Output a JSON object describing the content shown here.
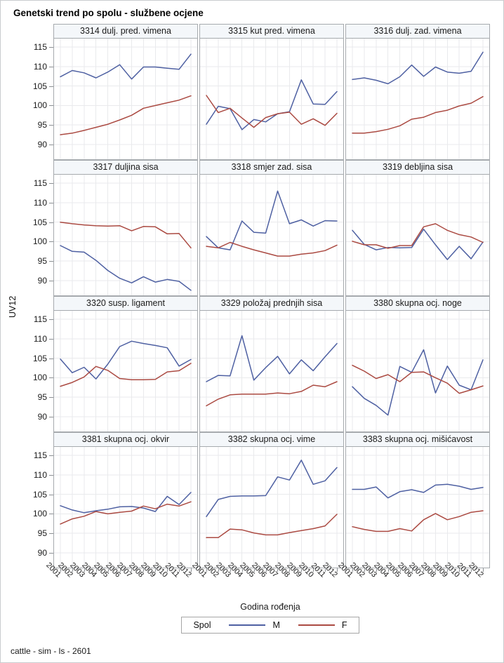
{
  "page": {
    "title": "Genetski trend po spolu - službene ocjene",
    "footer": "cattle - sim - ls - 2601"
  },
  "chart_data": {
    "type": "line",
    "layout": "4x3_trellis",
    "title": "Genetski trend po spolu - službene ocjene",
    "xlabel": "Godina rođenja",
    "ylabel": "UV12",
    "ylim": [
      86.2,
      117.2
    ],
    "yticks": [
      115,
      110,
      105,
      100,
      95,
      90
    ],
    "grid": true,
    "categories": [
      "2001",
      "2002",
      "2003",
      "2004",
      "2005",
      "2006",
      "2007",
      "2008",
      "2009",
      "2010",
      "2011",
      "2012"
    ],
    "legend": {
      "title": "Spol",
      "position": "bottom",
      "entries": [
        {
          "label": "M",
          "color": "#4e60a2"
        },
        {
          "label": "F",
          "color": "#ab4a42"
        }
      ]
    },
    "panels": [
      {
        "title": "3314 dulj. pred. vimena",
        "series": [
          {
            "name": "M",
            "values": [
              107.4,
              109.0,
              108.4,
              107.1,
              108.6,
              110.5,
              106.8,
              109.9,
              109.9,
              109.6,
              109.3,
              113.2
            ]
          },
          {
            "name": "F",
            "values": [
              92.5,
              92.9,
              93.6,
              94.4,
              95.2,
              96.3,
              97.5,
              99.3,
              100.0,
              100.7,
              101.4,
              102.5
            ]
          }
        ]
      },
      {
        "title": "3315 kut pred. vimena",
        "series": [
          {
            "name": "M",
            "values": [
              95.2,
              99.8,
              99.2,
              93.8,
              96.4,
              95.8,
              97.9,
              98.4,
              106.6,
              100.4,
              100.3,
              103.6
            ]
          },
          {
            "name": "F",
            "values": [
              102.6,
              98.2,
              99.3,
              96.8,
              94.4,
              96.9,
              97.9,
              98.3,
              95.2,
              96.6,
              94.9,
              98.0
            ]
          }
        ]
      },
      {
        "title": "3316 dulj. zad. vimena",
        "series": [
          {
            "name": "M",
            "values": [
              106.7,
              107.1,
              106.5,
              105.6,
              107.4,
              110.4,
              107.5,
              109.9,
              108.6,
              108.3,
              108.8,
              113.7
            ]
          },
          {
            "name": "F",
            "values": [
              92.9,
              92.9,
              93.3,
              93.9,
              94.8,
              96.5,
              97.0,
              98.2,
              98.8,
              99.9,
              100.6,
              102.3
            ]
          }
        ]
      },
      {
        "title": "3317 duljina sisa",
        "series": [
          {
            "name": "M",
            "values": [
              99.0,
              97.5,
              97.3,
              95.2,
              92.6,
              90.6,
              89.4,
              91.0,
              89.6,
              90.3,
              89.8,
              87.5
            ]
          },
          {
            "name": "F",
            "values": [
              105.0,
              104.6,
              104.3,
              104.1,
              104.0,
              104.1,
              102.8,
              103.9,
              103.8,
              102.0,
              102.1,
              98.4
            ]
          }
        ]
      },
      {
        "title": "3318 smjer zad. sisa",
        "series": [
          {
            "name": "M",
            "values": [
              101.3,
              98.4,
              97.9,
              105.3,
              102.4,
              102.2,
              113.0,
              104.6,
              105.6,
              104.0,
              105.4,
              105.3
            ]
          },
          {
            "name": "F",
            "values": [
              98.8,
              98.4,
              99.8,
              98.8,
              97.9,
              97.1,
              96.3,
              96.3,
              96.8,
              97.1,
              97.7,
              99.1
            ]
          }
        ]
      },
      {
        "title": "3319 debljina sisa",
        "series": [
          {
            "name": "M",
            "values": [
              102.9,
              99.3,
              97.9,
              98.5,
              98.4,
              98.5,
              103.2,
              99.2,
              95.4,
              98.8,
              95.6,
              99.9
            ]
          },
          {
            "name": "F",
            "values": [
              100.1,
              99.2,
              99.2,
              98.3,
              99.0,
              99.0,
              103.8,
              104.6,
              102.9,
              101.8,
              101.2,
              99.8
            ]
          }
        ]
      },
      {
        "title": "3320 susp. ligament",
        "series": [
          {
            "name": "M",
            "values": [
              104.8,
              101.3,
              102.7,
              99.7,
              103.5,
              108.0,
              109.4,
              108.8,
              108.3,
              107.7,
              103.0,
              104.7
            ]
          },
          {
            "name": "F",
            "values": [
              97.8,
              98.8,
              100.2,
              102.9,
              101.9,
              99.8,
              99.5,
              99.5,
              99.6,
              101.5,
              101.8,
              103.7
            ]
          }
        ]
      },
      {
        "title": "3329 položaj prednjih sisa",
        "series": [
          {
            "name": "M",
            "values": [
              99.0,
              100.6,
              100.5,
              110.8,
              99.4,
              102.6,
              105.5,
              101.0,
              104.6,
              101.8,
              105.4,
              108.8
            ]
          },
          {
            "name": "F",
            "values": [
              92.8,
              94.5,
              95.6,
              95.8,
              95.8,
              95.8,
              96.1,
              95.9,
              96.5,
              98.1,
              97.7,
              99.0
            ]
          }
        ]
      },
      {
        "title": "3380 skupna ocj. noge",
        "series": [
          {
            "name": "M",
            "values": [
              97.7,
              94.7,
              92.9,
              90.4,
              102.9,
              101.4,
              107.2,
              96.1,
              103.0,
              98.1,
              96.9,
              104.6
            ]
          },
          {
            "name": "F",
            "values": [
              103.2,
              101.7,
              99.8,
              100.8,
              99.0,
              101.4,
              101.5,
              100.0,
              98.6,
              96.0,
              96.9,
              97.9
            ]
          }
        ]
      },
      {
        "title": "3381 skupna ocj. okvir",
        "series": [
          {
            "name": "M",
            "values": [
              102.1,
              101.0,
              100.3,
              100.8,
              101.2,
              101.8,
              101.9,
              101.5,
              100.6,
              104.5,
              102.4,
              105.5
            ]
          },
          {
            "name": "F",
            "values": [
              97.4,
              98.7,
              99.4,
              100.6,
              100.0,
              100.4,
              100.7,
              102.0,
              101.3,
              102.5,
              102.0,
              103.1
            ]
          }
        ]
      },
      {
        "title": "3382 skupna ocj. vime",
        "series": [
          {
            "name": "M",
            "values": [
              99.3,
              103.7,
              104.5,
              104.6,
              104.6,
              104.7,
              109.5,
              108.7,
              113.8,
              107.6,
              108.5,
              111.9
            ]
          },
          {
            "name": "F",
            "values": [
              93.9,
              93.9,
              96.1,
              95.9,
              95.1,
              94.6,
              94.6,
              95.2,
              95.7,
              96.2,
              96.9,
              99.9
            ]
          }
        ]
      },
      {
        "title": "3383 skupna ocj. mišićavost",
        "series": [
          {
            "name": "M",
            "values": [
              106.3,
              106.3,
              106.9,
              104.1,
              105.7,
              106.2,
              105.5,
              107.4,
              107.6,
              107.1,
              106.3,
              106.8
            ]
          },
          {
            "name": "F",
            "values": [
              96.7,
              96.0,
              95.5,
              95.5,
              96.2,
              95.6,
              98.5,
              100.1,
              98.5,
              99.3,
              100.4,
              100.8
            ]
          }
        ]
      }
    ]
  },
  "style": {
    "grid_color": "#e9eaec",
    "panel_border": "#a6aaae",
    "header_bg": "#f4f7fa",
    "tick_color": "#8b8f93",
    "page_border": "#c9ccce"
  }
}
